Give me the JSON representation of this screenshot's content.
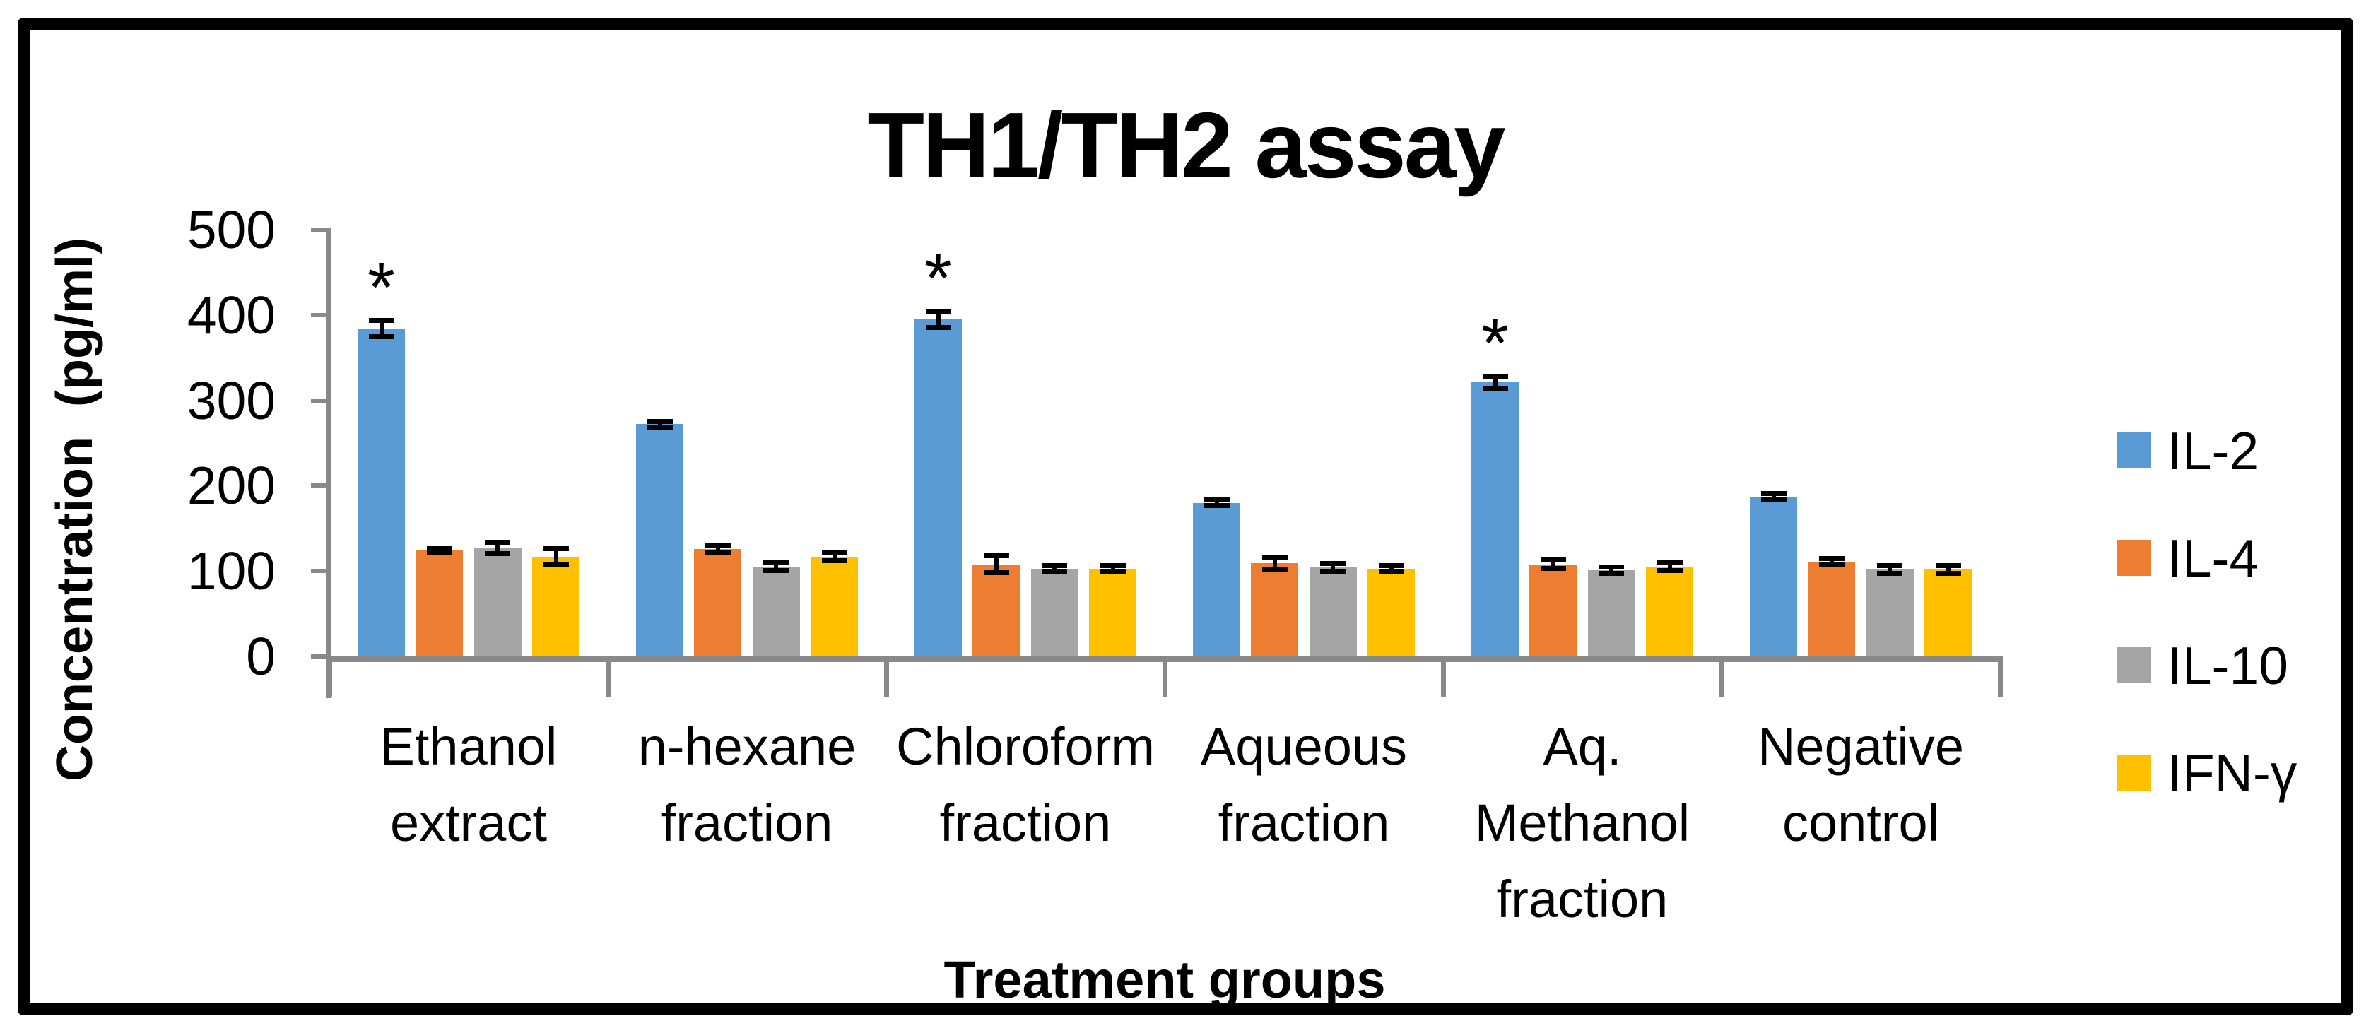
{
  "chart_data": {
    "type": "bar",
    "title": "TH1/TH2 assay",
    "xlabel": "Treatment groups",
    "ylabel": "Concentration (pg/ml)",
    "ylim": [
      0,
      500
    ],
    "yticks": [
      0,
      100,
      200,
      300,
      400,
      500
    ],
    "grid": false,
    "legend_position": "right",
    "categories": [
      "Ethanol extract",
      "n-hexane fraction",
      "Chloroform fraction",
      "Aqueous fraction",
      "Aq. Methanol fraction",
      "Negative control"
    ],
    "category_lines": [
      [
        "Ethanol",
        "extract"
      ],
      [
        "n-hexane",
        "fraction"
      ],
      [
        "Chloroform",
        "fraction"
      ],
      [
        "Aqueous",
        "fraction"
      ],
      [
        "Aq.",
        "Methanol",
        "fraction"
      ],
      [
        "Negative",
        "control"
      ]
    ],
    "series": [
      {
        "name": "IL-2",
        "color": "#5B9BD5",
        "values": [
          384,
          272,
          395,
          180,
          321,
          187
        ],
        "errors": [
          10,
          4,
          10,
          4,
          8,
          4
        ]
      },
      {
        "name": "IL-4",
        "color": "#ED7D31",
        "values": [
          124,
          126,
          108,
          109,
          108,
          111
        ],
        "errors": [
          3,
          5,
          10,
          8,
          5,
          4
        ]
      },
      {
        "name": "IL-10",
        "color": "#A5A5A5",
        "values": [
          127,
          105,
          103,
          104,
          101,
          102
        ],
        "errors": [
          7,
          5,
          4,
          5,
          4,
          5
        ]
      },
      {
        "name": "IFN-γ",
        "color": "#FFC000",
        "values": [
          117,
          117,
          103,
          103,
          105,
          102
        ],
        "errors": [
          10,
          5,
          4,
          4,
          5,
          5
        ]
      }
    ],
    "annotations": [
      {
        "series": "IL-2",
        "category_index": 0,
        "text": "*"
      },
      {
        "series": "IL-2",
        "category_index": 2,
        "text": "*"
      },
      {
        "series": "IL-2",
        "category_index": 4,
        "text": "*"
      }
    ],
    "axis_color": "#898989",
    "error_bar_color": "#000000",
    "text_color": "#000000"
  }
}
